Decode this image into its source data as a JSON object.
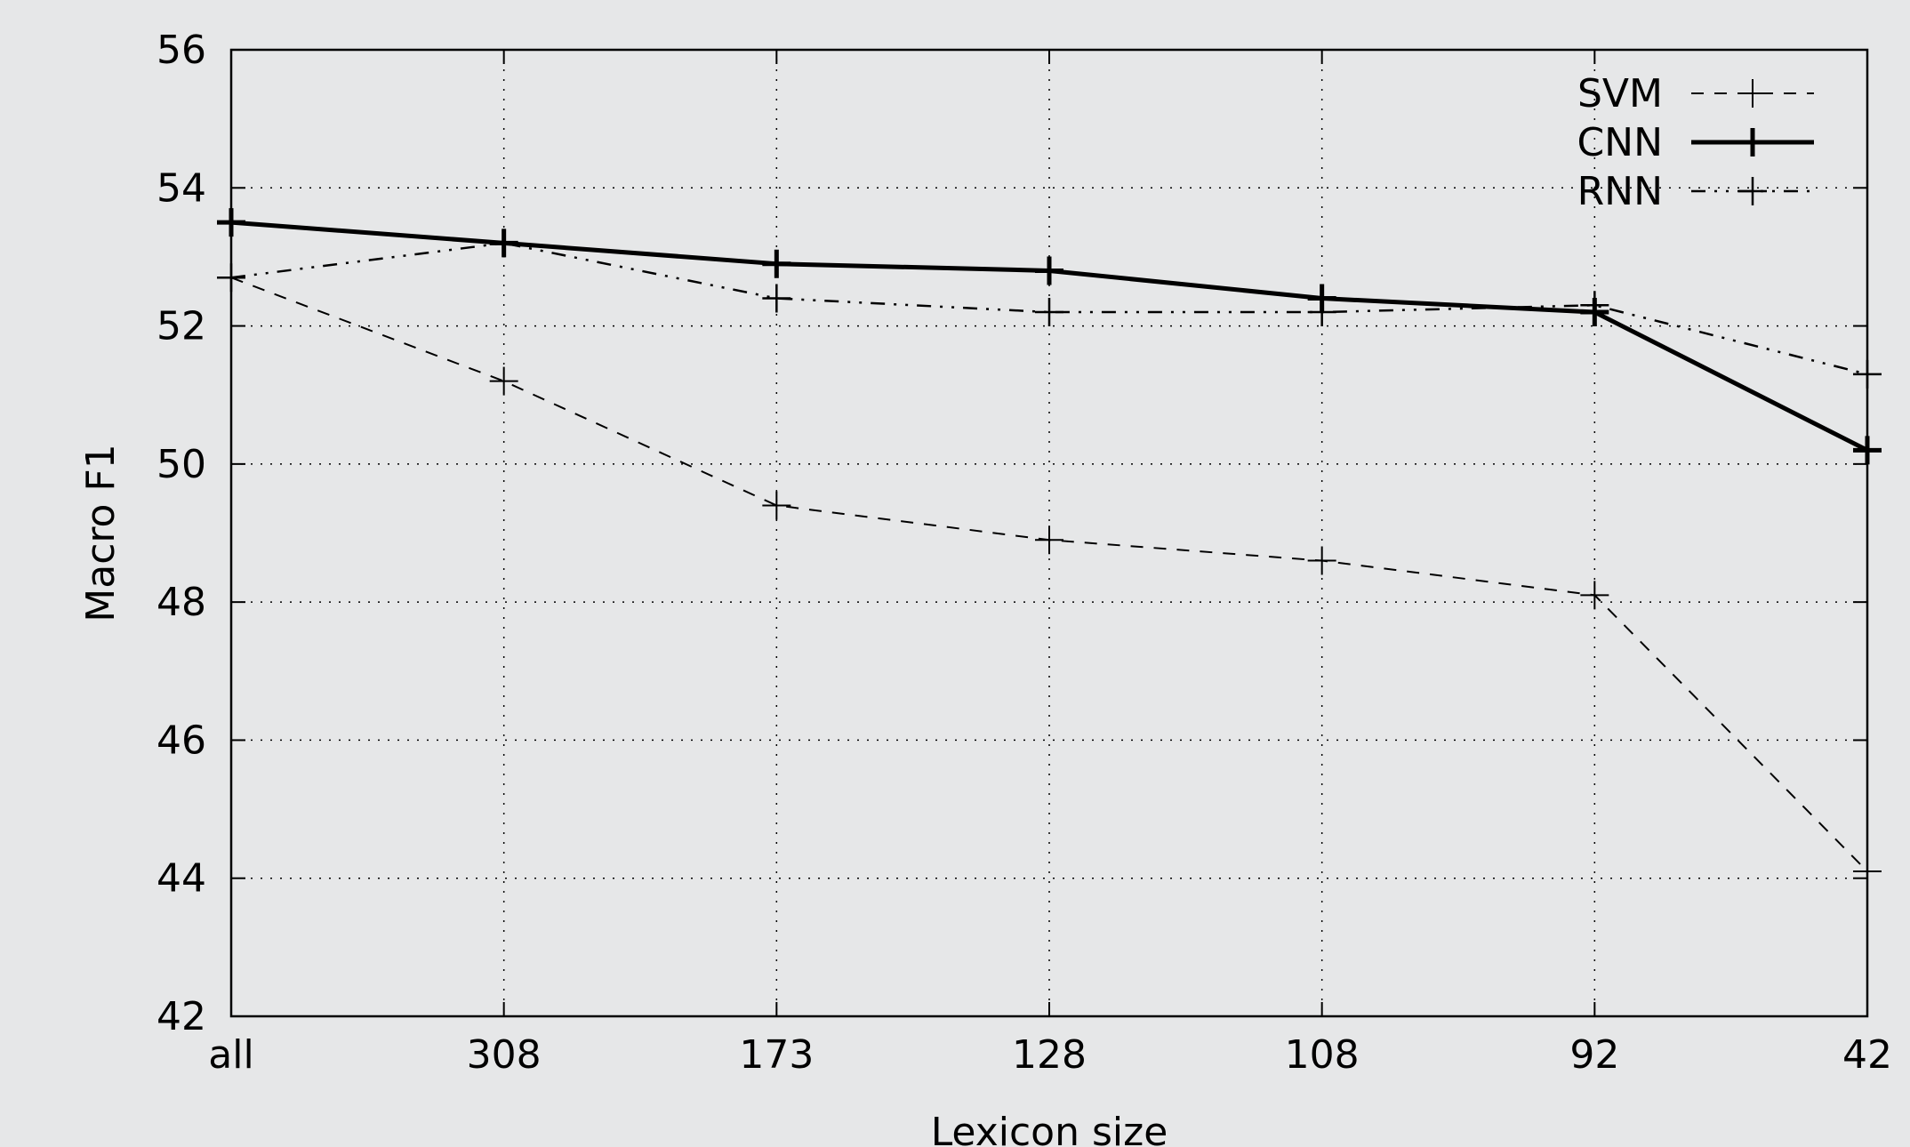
{
  "chart_data": {
    "type": "line",
    "xlabel": "Lexicon size",
    "ylabel": "Macro F1",
    "categories": [
      "all",
      "308",
      "173",
      "128",
      "108",
      "92",
      "42"
    ],
    "ylim": [
      42,
      56
    ],
    "yticks": [
      "42",
      "44",
      "46",
      "48",
      "50",
      "52",
      "54",
      "56"
    ],
    "grid": true,
    "legend_position": "top-right",
    "series": [
      {
        "name": "SVM",
        "style": "dashed",
        "values": [
          52.7,
          51.2,
          49.4,
          48.9,
          48.6,
          48.1,
          44.1
        ]
      },
      {
        "name": "CNN",
        "style": "solid-bold",
        "values": [
          53.5,
          53.2,
          52.9,
          52.8,
          52.4,
          52.2,
          50.2
        ]
      },
      {
        "name": "RNN",
        "style": "dash-dot-dot",
        "values": [
          52.7,
          53.2,
          52.4,
          52.2,
          52.2,
          52.3,
          51.3
        ]
      }
    ],
    "colors": {
      "background": "#e6e7e8",
      "line": "#000000",
      "grid": "#000000"
    }
  }
}
